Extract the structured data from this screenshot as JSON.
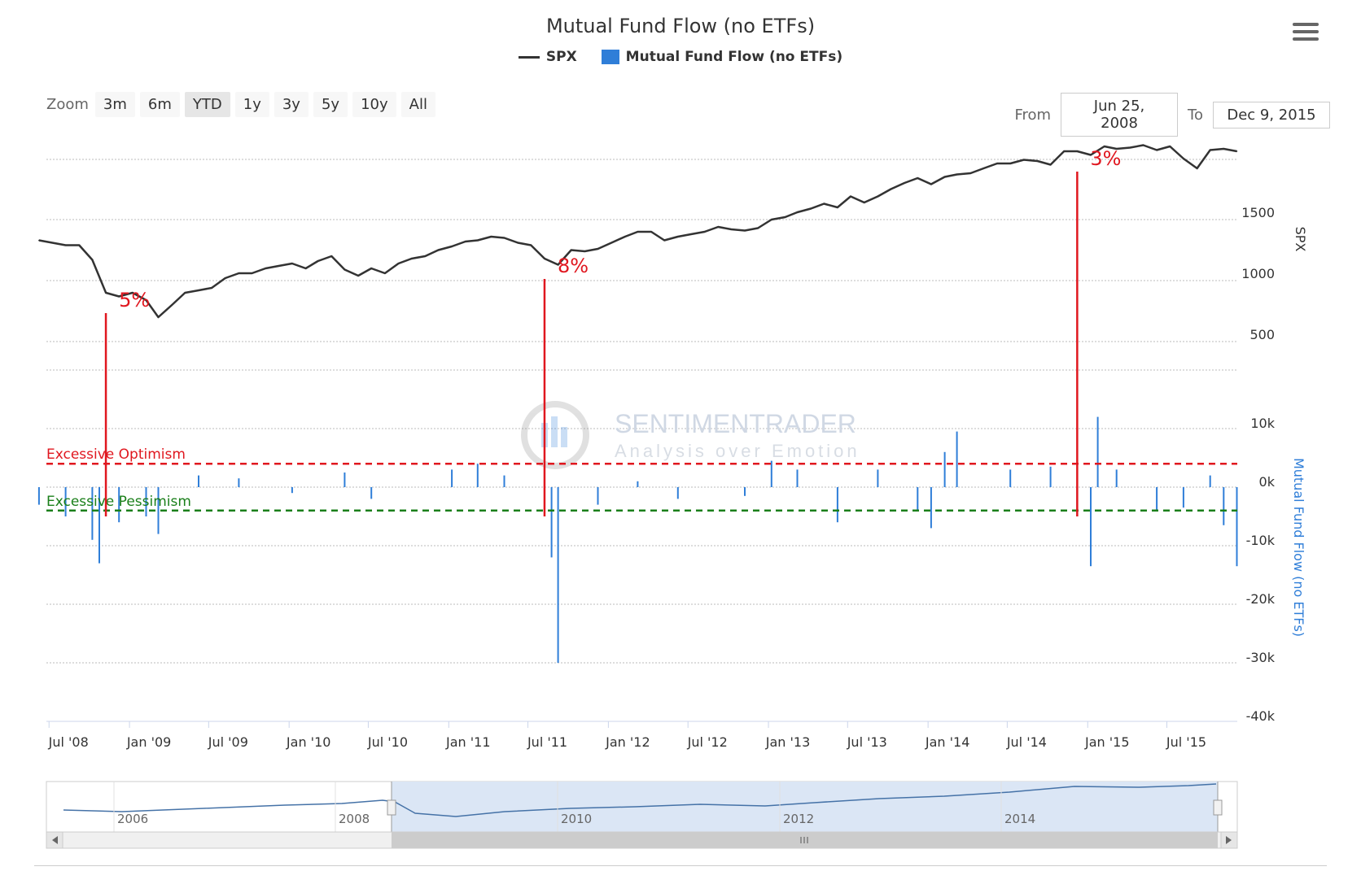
{
  "title": "Mutual Fund Flow (no ETFs)",
  "legend": {
    "spx": "SPX",
    "flow": "Mutual Fund Flow (no ETFs)"
  },
  "zoom": {
    "label": "Zoom",
    "buttons": [
      "3m",
      "6m",
      "YTD",
      "1y",
      "3y",
      "5y",
      "10y",
      "All"
    ],
    "active": "YTD"
  },
  "range": {
    "from_label": "From",
    "from_value": "Jun 25, 2008",
    "to_label": "To",
    "to_value": "Dec 9, 2015"
  },
  "colors": {
    "spx": "#333333",
    "flow": "#2f7ed8",
    "optimism": "#e0171f",
    "pessimism": "#1a7f1a",
    "annotation": "#e0171f"
  },
  "icons": {
    "menu": "hamburger-menu-icon"
  },
  "watermark": {
    "line1": "SENTIMENTRADER",
    "line2": "Analysis over Emotion"
  },
  "chart_data": {
    "type": "line",
    "x_axis": {
      "ticks": [
        "Jul '08",
        "Jan '09",
        "Jul '09",
        "Jan '10",
        "Jul '10",
        "Jan '11",
        "Jul '11",
        "Jan '12",
        "Jul '12",
        "Jan '13",
        "Jul '13",
        "Jan '14",
        "Jul '14",
        "Jan '15",
        "Jul '15"
      ],
      "range": [
        "2008-06-25",
        "2015-12-09"
      ]
    },
    "y_axis_spx": {
      "label": "SPX",
      "ticks": [
        "500",
        "1000",
        "1500"
      ],
      "range": [
        0,
        2200
      ]
    },
    "y_axis_flow": {
      "label": "Mutual Fund Flow (no ETFs)",
      "ticks": [
        "10k",
        "0k",
        "-10k",
        "-20k",
        "-30k",
        "-40k"
      ],
      "range": [
        -40000,
        10000
      ]
    },
    "series": [
      {
        "name": "SPX",
        "x": [
          "2008-06",
          "2008-08",
          "2008-09",
          "2008-10",
          "2008-11",
          "2008-12",
          "2009-01",
          "2009-02",
          "2009-03",
          "2009-04",
          "2009-05",
          "2009-06",
          "2009-07",
          "2009-08",
          "2009-09",
          "2009-10",
          "2009-11",
          "2009-12",
          "2010-01",
          "2010-02",
          "2010-03",
          "2010-04",
          "2010-05",
          "2010-06",
          "2010-07",
          "2010-08",
          "2010-09",
          "2010-10",
          "2010-11",
          "2010-12",
          "2011-01",
          "2011-02",
          "2011-03",
          "2011-04",
          "2011-05",
          "2011-06",
          "2011-07",
          "2011-08",
          "2011-09",
          "2011-10",
          "2011-11",
          "2011-12",
          "2012-01",
          "2012-02",
          "2012-03",
          "2012-04",
          "2012-05",
          "2012-06",
          "2012-07",
          "2012-08",
          "2012-09",
          "2012-10",
          "2012-11",
          "2012-12",
          "2013-01",
          "2013-02",
          "2013-03",
          "2013-04",
          "2013-05",
          "2013-06",
          "2013-07",
          "2013-08",
          "2013-09",
          "2013-10",
          "2013-11",
          "2013-12",
          "2014-01",
          "2014-02",
          "2014-03",
          "2014-04",
          "2014-05",
          "2014-06",
          "2014-07",
          "2014-08",
          "2014-09",
          "2014-10",
          "2014-11",
          "2014-12",
          "2015-01",
          "2015-02",
          "2015-03",
          "2015-04",
          "2015-05",
          "2015-06",
          "2015-07",
          "2015-08",
          "2015-09",
          "2015-10",
          "2015-11",
          "2015-12"
        ],
        "values": [
          1330,
          1290,
          1290,
          1170,
          900,
          870,
          900,
          840,
          700,
          800,
          900,
          920,
          940,
          1020,
          1060,
          1060,
          1100,
          1120,
          1140,
          1100,
          1160,
          1200,
          1090,
          1040,
          1100,
          1060,
          1140,
          1180,
          1200,
          1250,
          1280,
          1320,
          1330,
          1360,
          1350,
          1310,
          1290,
          1180,
          1130,
          1250,
          1240,
          1260,
          1310,
          1360,
          1400,
          1400,
          1330,
          1360,
          1380,
          1400,
          1440,
          1420,
          1410,
          1430,
          1500,
          1520,
          1560,
          1590,
          1630,
          1600,
          1690,
          1640,
          1690,
          1750,
          1800,
          1840,
          1790,
          1850,
          1870,
          1880,
          1920,
          1960,
          1960,
          1990,
          1980,
          1950,
          2060,
          2060,
          2030,
          2100,
          2080,
          2090,
          2110,
          2070,
          2100,
          2000,
          1920,
          2070,
          2080,
          2060
        ]
      },
      {
        "name": "Mutual Fund Flow (no ETFs)",
        "x": [
          "2008-06",
          "2008-08",
          "2008-10",
          "2008-10b",
          "2008-12",
          "2009-02",
          "2009-03",
          "2009-06",
          "2009-09",
          "2010-01",
          "2010-05",
          "2010-07",
          "2011-01",
          "2011-03",
          "2011-05",
          "2011-08",
          "2011-08b",
          "2011-09",
          "2011-12",
          "2012-03",
          "2012-06",
          "2012-11",
          "2013-01",
          "2013-03",
          "2013-06",
          "2013-09",
          "2013-12",
          "2014-01",
          "2014-02",
          "2014-03",
          "2014-07",
          "2014-10",
          "2014-12",
          "2015-01",
          "2015-01b",
          "2015-03",
          "2015-06",
          "2015-08",
          "2015-10",
          "2015-11",
          "2015-12"
        ],
        "values": [
          -3000,
          -5000,
          -9000,
          -13000,
          -6000,
          -5000,
          -8000,
          2000,
          1500,
          -1000,
          2500,
          -2000,
          3000,
          4000,
          2000,
          -5000,
          -12000,
          -30000,
          -3000,
          1000,
          -2000,
          -1500,
          4500,
          3000,
          -6000,
          3000,
          -4000,
          -7000,
          6000,
          9500,
          3000,
          3500,
          -5000,
          -13500,
          12000,
          3000,
          -4000,
          -3500,
          2000,
          -6500,
          -13500
        ]
      }
    ],
    "reference_lines": [
      {
        "label": "Excessive Optimism",
        "value": 4000
      },
      {
        "label": "Excessive Pessimism",
        "value": -4000
      }
    ],
    "annotations": [
      {
        "label": "5%",
        "x": "2008-11"
      },
      {
        "label": "8%",
        "x": "2011-08"
      },
      {
        "label": "3%",
        "x": "2014-12"
      }
    ],
    "navigator": {
      "ticks": [
        "2006",
        "2008",
        "2010",
        "2012",
        "2014"
      ]
    }
  }
}
